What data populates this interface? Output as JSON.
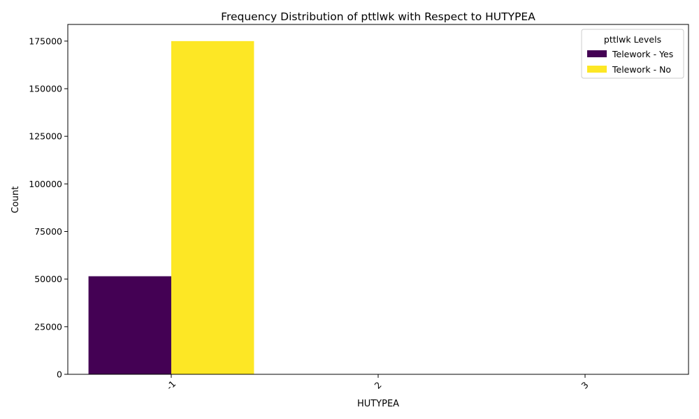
{
  "chart_data": {
    "type": "bar",
    "title": "Frequency Distribution of pttlwk with Respect to HUTYPEA",
    "xlabel": "HUTYPEA",
    "ylabel": "Count",
    "categories": [
      "-1",
      "2",
      "3"
    ],
    "series": [
      {
        "name": "Telework - Yes",
        "values": [
          51500,
          0,
          0
        ],
        "color": "#440154"
      },
      {
        "name": "Telework - No",
        "values": [
          175000,
          0,
          0
        ],
        "color": "#fde725"
      }
    ],
    "ylim": [
      0,
      183750
    ],
    "yticks": [
      0,
      25000,
      50000,
      75000,
      100000,
      125000,
      150000,
      175000
    ],
    "legend": {
      "title": "pttlwk Levels",
      "placement": "top-right"
    },
    "grid": false,
    "xtick_rotation": 45
  }
}
